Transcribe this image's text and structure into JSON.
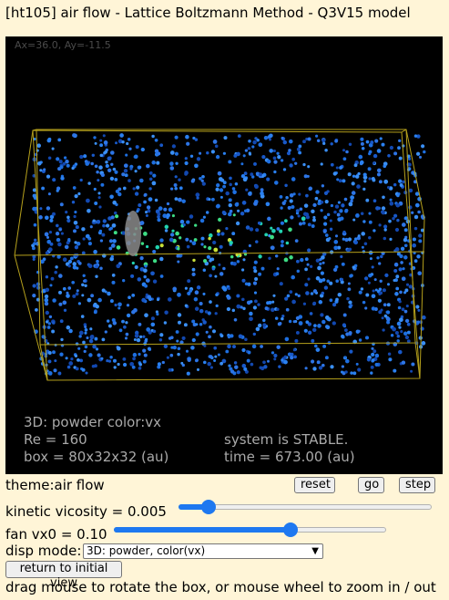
{
  "title": "[ht105] air flow - Lattice Boltzmann Method - Q3V15 model",
  "canvas": {
    "angle": "Ax=36.0, Ay=-11.5",
    "mode": "3D: powder color:vx",
    "re": "Re = 160",
    "box": "box = 80x32x32 (au)",
    "status": "system is STABLE.",
    "time": "time = 673.00 (au)"
  },
  "controls": {
    "theme": "theme:air flow",
    "reset_label": "reset",
    "go_label": "go",
    "step_label": "step",
    "viscosity_label": "kinetic vicosity = 0.005",
    "viscosity_level": 0.12,
    "fan_label": "fan vx0 = 0.10",
    "fan_level": 0.65,
    "disp_label": "disp mode:",
    "disp_selected": "3D: powder, color(vx)",
    "return_label": "return to initial view",
    "hint": "drag mouse to rotate the box, or mouse wheel to zoom in / out"
  },
  "colors": {
    "background": "#fff5d7",
    "canvas": "#000000",
    "box_edges": "#b5a01c",
    "particle_blue": "#1e6fe0",
    "accent": "#1e78f0"
  }
}
